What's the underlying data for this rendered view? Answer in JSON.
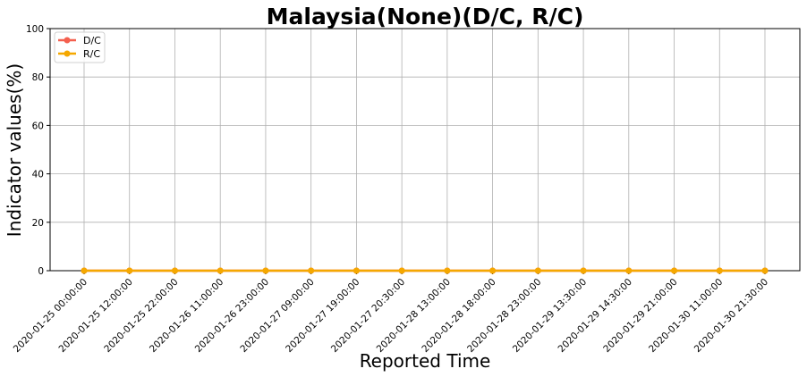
{
  "chart_data": {
    "type": "line",
    "title": "Malaysia(None)(D/C, R/C)",
    "xlabel": "Reported Time",
    "ylabel": "Indicator values(%)",
    "ylim": [
      0,
      100
    ],
    "yticks": [
      0,
      20,
      40,
      60,
      80,
      100
    ],
    "grid": true,
    "legend_position": "top-left",
    "categories": [
      "2020-01-25 00:00:00",
      "2020-01-25 12:00:00",
      "2020-01-25 22:00:00",
      "2020-01-26 11:00:00",
      "2020-01-26 23:00:00",
      "2020-01-27 09:00:00",
      "2020-01-27 19:00:00",
      "2020-01-27 20:30:00",
      "2020-01-28 13:00:00",
      "2020-01-28 18:00:00",
      "2020-01-28 23:00:00",
      "2020-01-29 13:30:00",
      "2020-01-29 14:30:00",
      "2020-01-29 21:00:00",
      "2020-01-30 11:00:00",
      "2020-01-30 21:30:00"
    ],
    "series": [
      {
        "name": "D/C",
        "color": "#f4604f",
        "values": [
          0,
          0,
          0,
          0,
          0,
          0,
          0,
          0,
          0,
          0,
          0,
          0,
          0,
          0,
          0,
          0
        ]
      },
      {
        "name": "R/C",
        "color": "#f5a800",
        "values": [
          0,
          0,
          0,
          0,
          0,
          0,
          0,
          0,
          0,
          0,
          0,
          0,
          0,
          0,
          0,
          0
        ]
      }
    ]
  }
}
